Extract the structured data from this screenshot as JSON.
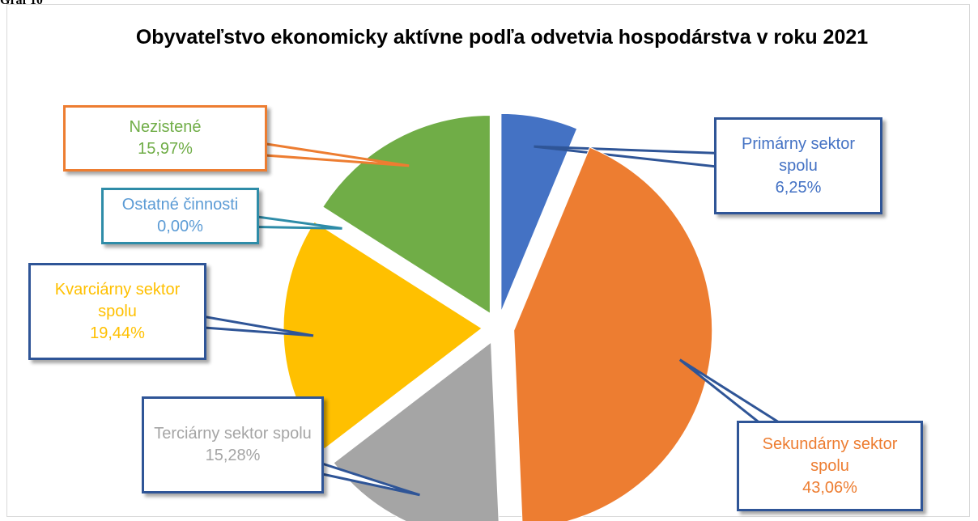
{
  "caption": "Graf 10",
  "chart_data": {
    "type": "pie",
    "title": "Obyvateľstvo ekonomicky aktívne podľa odvetvia hospodárstva v roku 2021",
    "categories": [
      "Primárny sektor spolu",
      "Sekundárny sektor spolu",
      "Terciárny sektor spolu",
      "Kvarciárny sektor spolu",
      "Ostatné činnosti",
      "Nezistené"
    ],
    "values": [
      6.25,
      43.06,
      15.28,
      19.44,
      0.0,
      15.97
    ],
    "value_labels": [
      "6,25%",
      "43,06%",
      "15,28%",
      "19,44%",
      "0,00%",
      "15,97%"
    ],
    "colors": [
      "#4472c4",
      "#ed7d31",
      "#a5a5a5",
      "#ffc000",
      "#5b9bd5",
      "#70ad47"
    ]
  }
}
